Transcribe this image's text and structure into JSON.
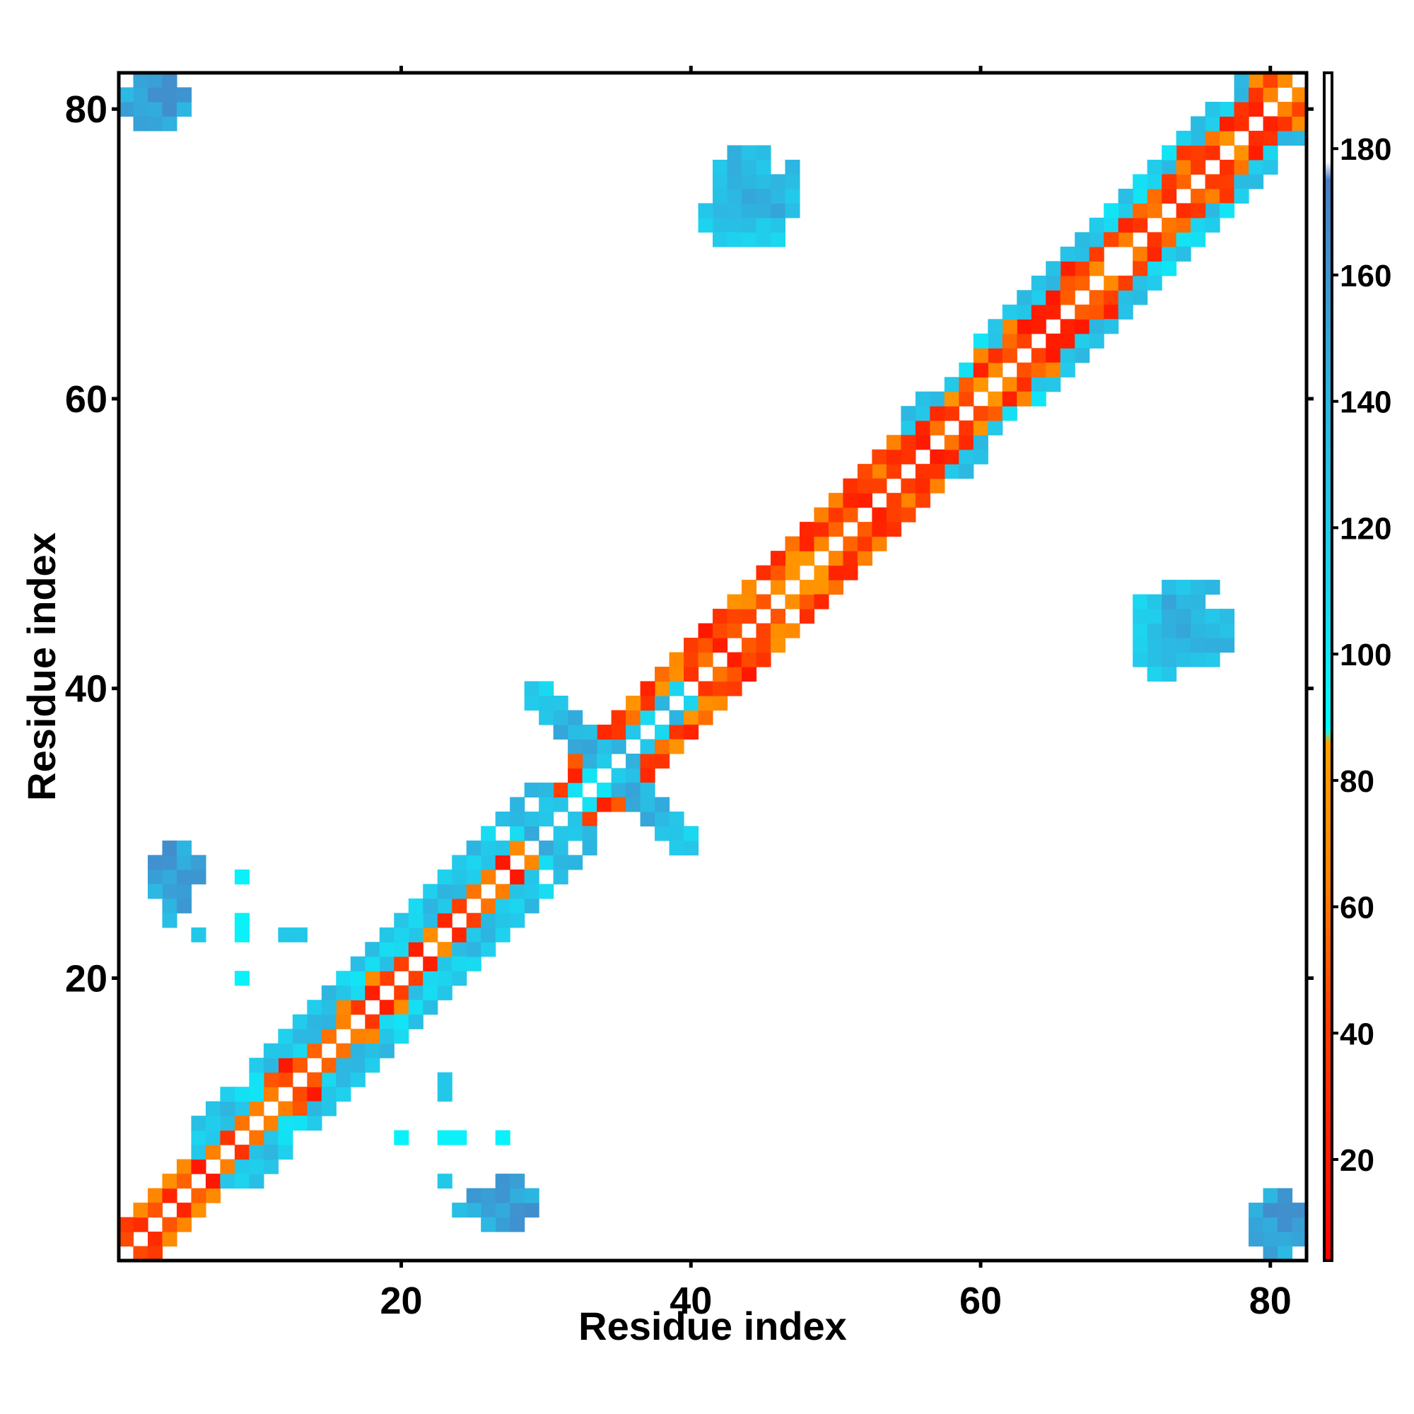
{
  "chart_data": {
    "type": "heatmap",
    "title": "",
    "xlabel": "Residue index",
    "ylabel": "Residue index",
    "xlim": [
      0.5,
      82.5
    ],
    "ylim": [
      0.5,
      82.5
    ],
    "x_ticks": [
      20,
      40,
      60,
      80
    ],
    "y_ticks": [
      20,
      40,
      60,
      80
    ],
    "grid": false,
    "colorbar": {
      "range": [
        4,
        192
      ],
      "ticks": [
        20,
        40,
        60,
        80,
        100,
        120,
        140,
        160,
        180
      ],
      "stops": [
        {
          "value": 4,
          "color": "#ff0000"
        },
        {
          "value": 44,
          "color": "#ff4000"
        },
        {
          "value": 64,
          "color": "#ff8000"
        },
        {
          "value": 86,
          "color": "#ffa000"
        },
        {
          "value": 88,
          "color": "#00ffff"
        },
        {
          "value": 110,
          "color": "#1ed2ee"
        },
        {
          "value": 140,
          "color": "#2eb4e0"
        },
        {
          "value": 175,
          "color": "#4a7cc4"
        },
        {
          "value": 178,
          "color": "#ffffff"
        },
        {
          "value": 192,
          "color": "#ffffff"
        }
      ]
    },
    "bands": [
      {
        "x": [
          2,
          35
        ],
        "y_offset_from_x": [
          -2,
          2
        ],
        "value_range": [
          10,
          75
        ]
      },
      {
        "x": [
          6,
          30
        ],
        "y_offset_from_x": [
          2,
          4
        ],
        "value_range": [
          95,
          140
        ]
      },
      {
        "x": [
          35,
          82
        ],
        "y_offset_from_x": [
          -3,
          3
        ],
        "value_range": [
          10,
          80
        ]
      },
      {
        "x": [
          55,
          78
        ],
        "y_offset_from_x": [
          3,
          4
        ],
        "value_range": [
          95,
          140
        ]
      }
    ],
    "clusters": [
      {
        "x": [
          29,
          40
        ],
        "y": [
          29,
          40
        ],
        "pattern": "x-shape",
        "value_range": [
          100,
          150
        ]
      },
      {
        "x": [
          42,
          47
        ],
        "y": [
          71,
          77
        ],
        "value_range": [
          100,
          150
        ]
      },
      {
        "x": [
          71,
          76
        ],
        "y": [
          41,
          46
        ],
        "value_range": [
          100,
          150
        ]
      },
      {
        "x": [
          1,
          5
        ],
        "y": [
          79,
          82
        ],
        "value_range": [
          130,
          165
        ]
      },
      {
        "x": [
          79,
          82
        ],
        "y": [
          1,
          5
        ],
        "value_range": [
          130,
          165
        ]
      },
      {
        "x": [
          3,
          6
        ],
        "y": [
          26,
          29
        ],
        "value_range": [
          130,
          165
        ]
      },
      {
        "x": [
          25,
          29
        ],
        "y": [
          3,
          6
        ],
        "value_range": [
          130,
          165
        ]
      }
    ],
    "scatter_cells": [
      {
        "x": 9,
        "y": 27,
        "value": 95
      },
      {
        "x": 4,
        "y": 24,
        "value": 130
      },
      {
        "x": 6,
        "y": 23,
        "value": 120
      },
      {
        "x": 9,
        "y": 23,
        "value": 95
      },
      {
        "x": 9,
        "y": 24,
        "value": 95
      },
      {
        "x": 12,
        "y": 23,
        "value": 120
      },
      {
        "x": 13,
        "y": 23,
        "value": 120
      },
      {
        "x": 9,
        "y": 20,
        "value": 95
      },
      {
        "x": 24,
        "y": 9,
        "value": 95
      },
      {
        "x": 23,
        "y": 9,
        "value": 95
      },
      {
        "x": 23,
        "y": 12,
        "value": 120
      },
      {
        "x": 23,
        "y": 13,
        "value": 120
      },
      {
        "x": 20,
        "y": 9,
        "value": 95
      },
      {
        "x": 27,
        "y": 9,
        "value": 95
      }
    ]
  }
}
